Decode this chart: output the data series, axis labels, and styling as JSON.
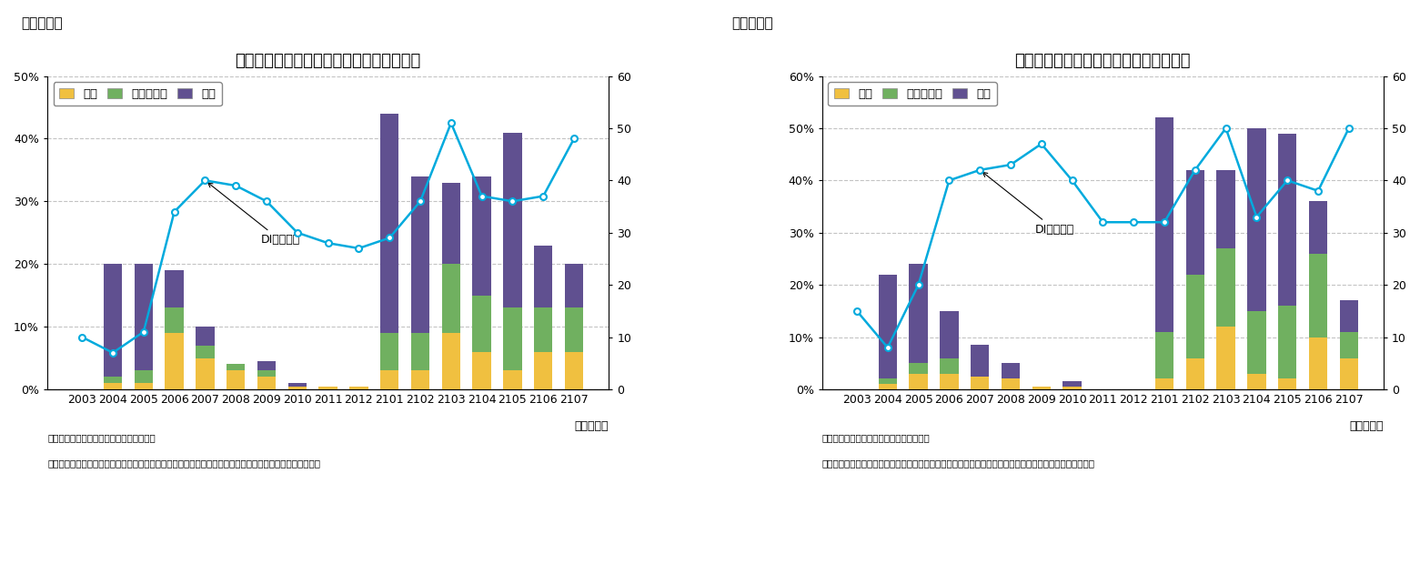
{
  "fig4": {
    "title": "緊急事態宣言関連のコメント数（南関東）",
    "label_top": "（図表４）",
    "categories": [
      "2003",
      "2004",
      "2005",
      "2006",
      "2007",
      "2008",
      "2009",
      "2010",
      "2011",
      "2012",
      "2101",
      "2102",
      "2103",
      "2104",
      "2105",
      "2106",
      "2107"
    ],
    "kaizen": [
      0,
      1,
      1,
      9,
      5,
      3,
      2,
      0.5,
      0.5,
      0.5,
      3,
      3,
      9,
      6,
      3,
      6,
      6
    ],
    "kawarazu": [
      0,
      1,
      2,
      4,
      2,
      1,
      1,
      0,
      0,
      0,
      6,
      6,
      11,
      9,
      10,
      7,
      7
    ],
    "akka": [
      0,
      18,
      17,
      6,
      3,
      0,
      1.5,
      0.5,
      0,
      0,
      35,
      25,
      13,
      19,
      28,
      10,
      7
    ],
    "DI": [
      10,
      7,
      11,
      34,
      40,
      39,
      36,
      30,
      28,
      27,
      29,
      36,
      51,
      37,
      36,
      37,
      48
    ],
    "DI_right_label": "DI（右軸）",
    "yleft_max": 50,
    "yleft_ticks": [
      0,
      10,
      20,
      30,
      40,
      50
    ],
    "yleft_labels": [
      "0%",
      "10%",
      "20%",
      "30%",
      "40%",
      "50%"
    ],
    "yright_max": 60,
    "yright_ticks": [
      0,
      10,
      20,
      30,
      40,
      50,
      60
    ],
    "xlabel": "（年・月）",
    "source": "（資料）内閣府「景気ウォッチャー調査」",
    "note": "（注）「緊急事態宣言」「まん延防止等重点措置」という単語を含むコメントが、全コメントに占める割合"
  },
  "fig5": {
    "title": "緊急事態宣言関連のコメント数（近畿）",
    "label_top": "（図表５）",
    "categories": [
      "2003",
      "2004",
      "2005",
      "2006",
      "2007",
      "2008",
      "2009",
      "2010",
      "2011",
      "2012",
      "2101",
      "2102",
      "2103",
      "2104",
      "2105",
      "2106",
      "2107"
    ],
    "kaizen": [
      0,
      1,
      3,
      3,
      2.5,
      2,
      0.5,
      0.5,
      0,
      0,
      2,
      6,
      12,
      3,
      2,
      10,
      6
    ],
    "kawarazu": [
      0,
      1,
      2,
      3,
      0,
      0,
      0,
      0,
      0,
      0,
      9,
      16,
      15,
      12,
      14,
      16,
      5
    ],
    "akka": [
      0,
      20,
      19,
      9,
      6,
      3,
      0,
      1,
      0,
      0,
      41,
      20,
      15,
      35,
      33,
      10,
      6
    ],
    "DI": [
      15,
      8,
      20,
      40,
      42,
      43,
      47,
      40,
      32,
      32,
      32,
      42,
      50,
      33,
      40,
      38,
      50
    ],
    "DI_right_label": "DI（右軸）",
    "yleft_max": 60,
    "yleft_ticks": [
      0,
      10,
      20,
      30,
      40,
      50,
      60
    ],
    "yleft_labels": [
      "0%",
      "10%",
      "20%",
      "30%",
      "40%",
      "50%",
      "60%"
    ],
    "yright_max": 60,
    "yright_ticks": [
      0,
      10,
      20,
      30,
      40,
      50,
      60
    ],
    "xlabel": "（年・月）",
    "source": "（資料）内閣府「景気ウォッチャー調査」",
    "note": "（注）「緊急事態宣言」「まん延防止等重点措置」という単語を含むコメントが、全コメントに占める割合"
  },
  "colors": {
    "kaizen": "#F0C040",
    "kawarazu": "#70B060",
    "akka": "#605090",
    "DI_line": "#00AADD",
    "DI_marker_face": "white",
    "DI_marker_edge": "#00AADD",
    "background": "#FFFFFF",
    "grid": "#AAAAAA"
  },
  "legend_labels": [
    "改善",
    "変わらない",
    "悪化"
  ],
  "bar_width": 0.6,
  "fontsize_title": 13,
  "fontsize_tick": 9,
  "fontsize_legend": 9.5,
  "fontsize_label": 8,
  "fontsize_annotation": 9
}
